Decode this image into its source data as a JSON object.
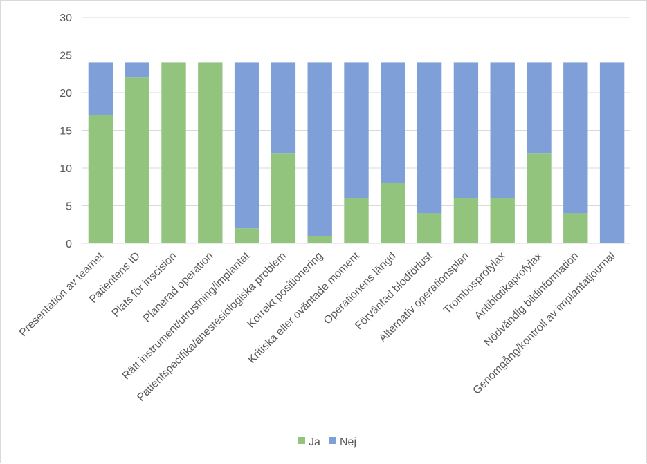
{
  "chart_data": {
    "type": "bar",
    "stacked": true,
    "title": "",
    "xlabel": "",
    "ylabel": "",
    "ylim": [
      0,
      30
    ],
    "yticks": [
      0,
      5,
      10,
      15,
      20,
      25,
      30
    ],
    "grid": true,
    "legend_position": "bottom",
    "categories": [
      "Presentation av teamet",
      "Patientens ID",
      "Plats för inscision",
      "Planerad operation",
      "Rätt instrument/utrustning/implantat",
      "Patientspecifika/anestesiologiska problem",
      "Korrekt positionering",
      "Kritiska eller oväntade moment",
      "Operationens längd",
      "Förväntad blodförlust",
      "Alternativ operationsplan",
      "Trombosprofylax",
      "Antibiotikaprofylax",
      "Nödvändig bildinformation",
      "Genomgång/kontroll av implantatjournal"
    ],
    "series": [
      {
        "name": "Ja",
        "color": "#93c47d",
        "values": [
          17,
          22,
          24,
          24,
          2,
          12,
          1,
          6,
          8,
          4,
          6,
          6,
          12,
          4,
          0
        ]
      },
      {
        "name": "Nej",
        "color": "#7f9fd8",
        "values": [
          7,
          2,
          0,
          0,
          22,
          12,
          23,
          18,
          16,
          20,
          18,
          18,
          12,
          20,
          24
        ]
      }
    ]
  }
}
